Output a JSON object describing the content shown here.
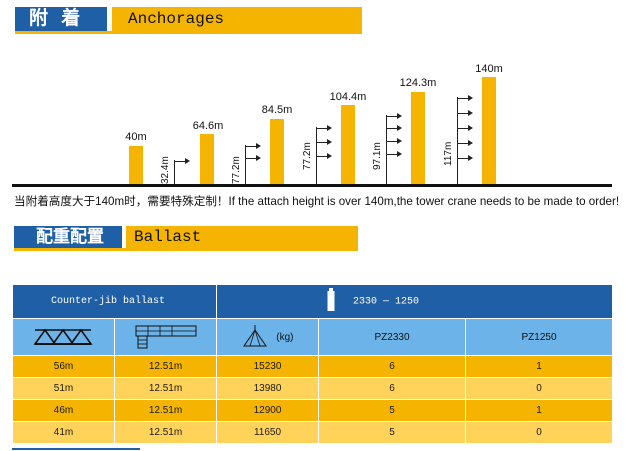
{
  "anchorages": {
    "title_cn": "附 着",
    "title_en": "Anchorages",
    "heights": [
      "40m",
      "64.6m",
      "84.5m",
      "104.4m",
      "124.3m",
      "140m"
    ],
    "dimensions": [
      "32.4m",
      "77.2m",
      "77.2m",
      "97.1m",
      "117m"
    ],
    "note": "当附着高度大于140m时，需要特殊定制！If the attach height is over 140m,the tower crane needs to be made to order!"
  },
  "ballast": {
    "title_cn": "配重配置",
    "title_en": "Ballast",
    "table": {
      "header_left": "Counter-jib ballast",
      "header_right": "2330 — 1250",
      "subheader_kg": "(kg)",
      "subheader_col4": "PZ2330",
      "subheader_col5": "PZ1250",
      "rows": [
        [
          "56m",
          "12.51m",
          "15230",
          "6",
          "1"
        ],
        [
          "51m",
          "12.51m",
          "13980",
          "6",
          "0"
        ],
        [
          "46m",
          "12.51m",
          "12900",
          "5",
          "1"
        ],
        [
          "41m",
          "12.51m",
          "11650",
          "5",
          "0"
        ]
      ]
    }
  },
  "colors": {
    "blue": "#1f5fa6",
    "yellow": "#f5b400",
    "light_blue": "#6bb3e8",
    "light_yellow": "#ffd35a"
  }
}
